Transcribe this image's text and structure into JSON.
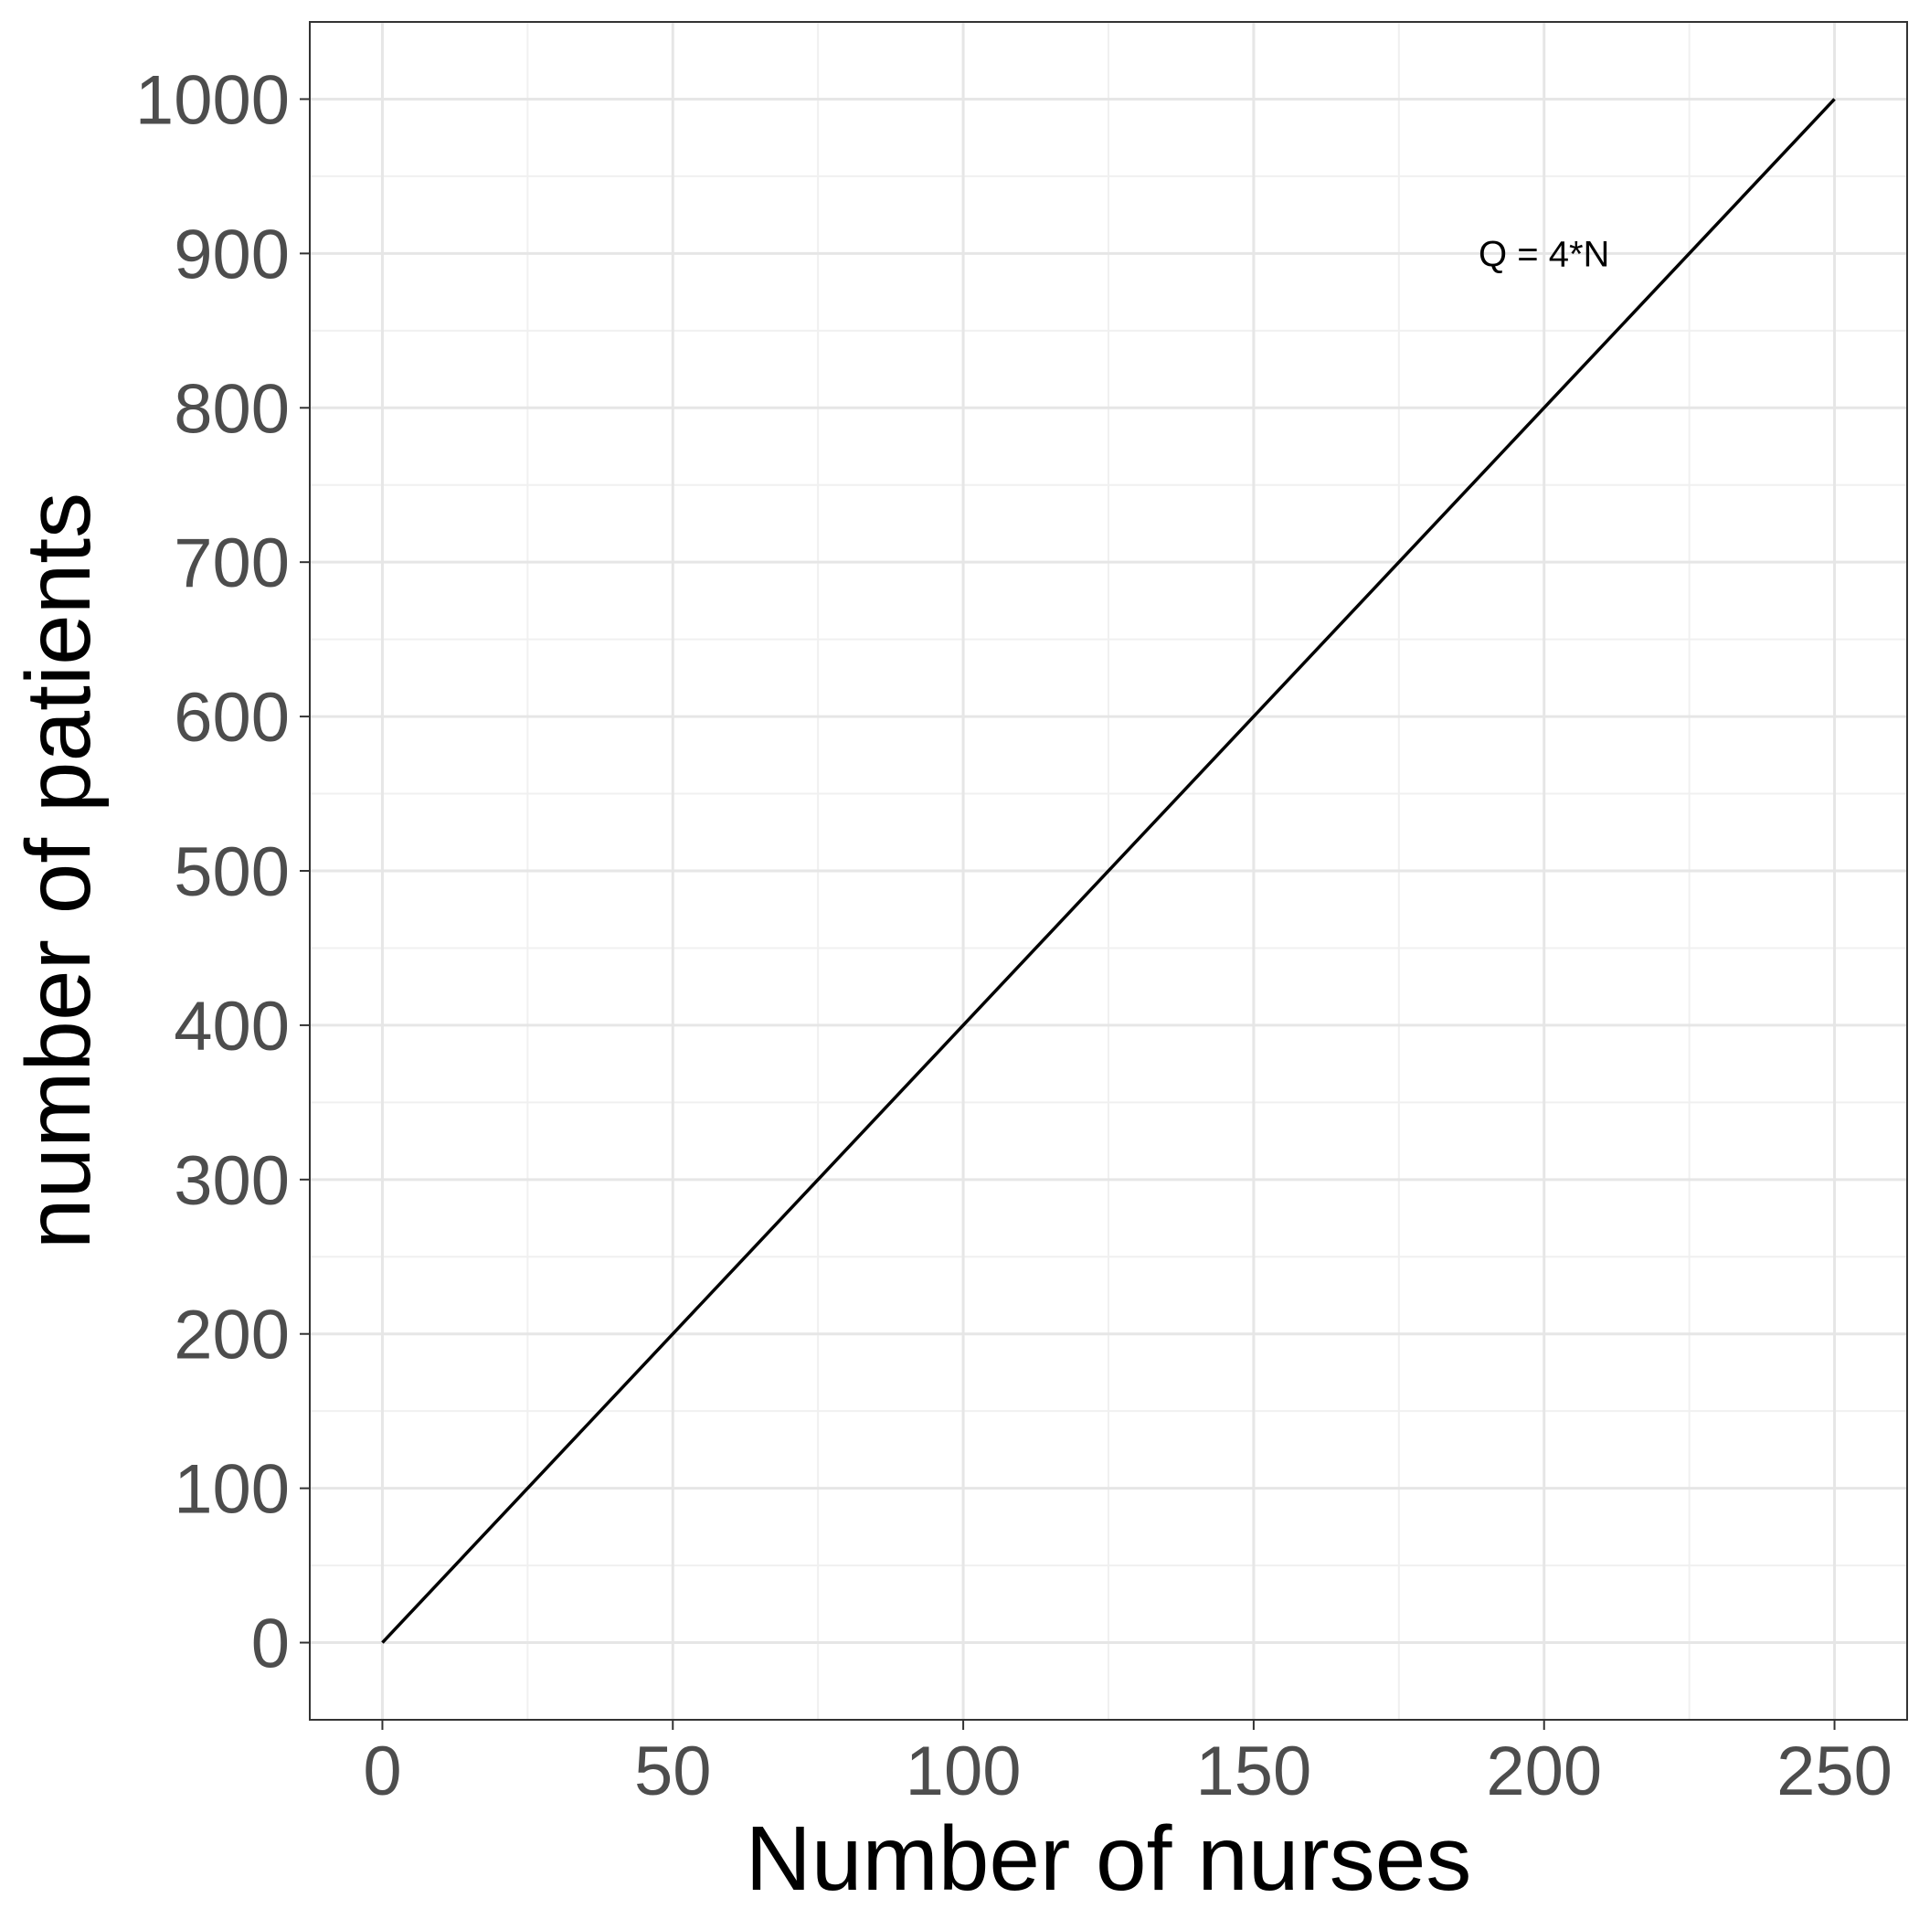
{
  "chart_data": {
    "type": "line",
    "title": "",
    "xlabel": "Number of nurses",
    "ylabel": "number of patients",
    "xlim": [
      -12.5,
      262.5
    ],
    "ylim": [
      -50,
      1050
    ],
    "xticks": [
      0,
      50,
      100,
      150,
      200,
      250
    ],
    "yticks": [
      0,
      100,
      200,
      300,
      400,
      500,
      600,
      700,
      800,
      900,
      1000
    ],
    "xtick_labels": [
      "0",
      "50",
      "100",
      "150",
      "200",
      "250"
    ],
    "ytick_labels": [
      "0",
      "100",
      "200",
      "300",
      "400",
      "500",
      "600",
      "700",
      "800",
      "900",
      "1000"
    ],
    "grid": true,
    "series": [
      {
        "x": [
          0,
          250
        ],
        "y": [
          0,
          1000
        ],
        "color": "#000000"
      }
    ],
    "annotations": [
      {
        "text": "Q = 4*N",
        "x": 200,
        "y": 900
      }
    ]
  }
}
